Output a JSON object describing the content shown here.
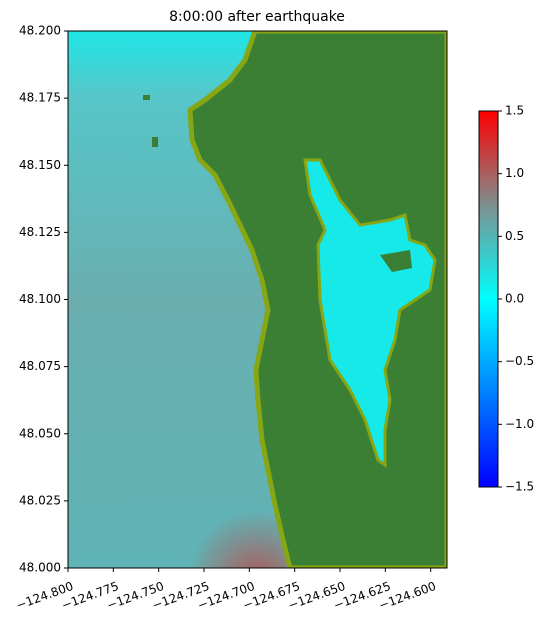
{
  "chart_data": {
    "type": "map",
    "title": "8:00:00 after earthquake",
    "xlim": [
      -124.8,
      -124.591
    ],
    "ylim": [
      48.0,
      48.2
    ],
    "xticks": [
      {
        "value": -124.8,
        "label": "−124.800"
      },
      {
        "value": -124.775,
        "label": "−124.775"
      },
      {
        "value": -124.75,
        "label": "−124.750"
      },
      {
        "value": -124.725,
        "label": "−124.725"
      },
      {
        "value": -124.7,
        "label": "−124.700"
      },
      {
        "value": -124.675,
        "label": "−124.675"
      },
      {
        "value": -124.65,
        "label": "−124.650"
      },
      {
        "value": -124.625,
        "label": "−124.625"
      },
      {
        "value": -124.6,
        "label": "−124.600"
      }
    ],
    "yticks": [
      {
        "value": 48.0,
        "label": "48.000"
      },
      {
        "value": 48.025,
        "label": "48.025"
      },
      {
        "value": 48.05,
        "label": "48.050"
      },
      {
        "value": 48.075,
        "label": "48.075"
      },
      {
        "value": 48.1,
        "label": "48.100"
      },
      {
        "value": 48.125,
        "label": "48.125"
      },
      {
        "value": 48.15,
        "label": "48.150"
      },
      {
        "value": 48.175,
        "label": "48.175"
      },
      {
        "value": 48.2,
        "label": "48.200"
      }
    ],
    "colorbar": {
      "lim": [
        -1.5,
        1.5
      ],
      "ticks": [
        {
          "value": -1.5,
          "label": "−1.5"
        },
        {
          "value": -1.0,
          "label": "−1.0"
        },
        {
          "value": -0.5,
          "label": "−0.5"
        },
        {
          "value": 0.0,
          "label": "0.0"
        },
        {
          "value": 0.5,
          "label": "0.5"
        },
        {
          "value": 1.0,
          "label": "1.0"
        },
        {
          "value": 1.5,
          "label": "1.5"
        }
      ]
    }
  }
}
